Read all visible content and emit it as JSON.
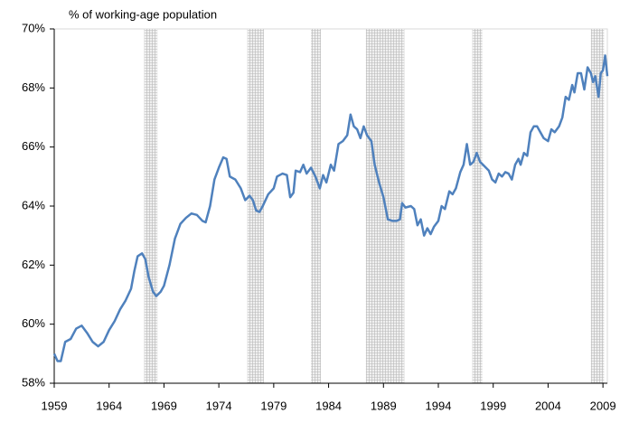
{
  "chart_data": {
    "type": "line",
    "title": "% of working-age population",
    "x": [
      1959.0,
      1959.3,
      1959.6,
      1960.0,
      1960.5,
      1961.0,
      1961.5,
      1962.0,
      1962.5,
      1963.0,
      1963.5,
      1964.0,
      1964.5,
      1965.0,
      1965.5,
      1966.0,
      1966.3,
      1966.6,
      1967.0,
      1967.3,
      1967.6,
      1968.0,
      1968.3,
      1968.7,
      1969.0,
      1969.5,
      1970.0,
      1970.5,
      1971.0,
      1971.5,
      1972.0,
      1972.5,
      1972.8,
      1973.2,
      1973.6,
      1974.0,
      1974.4,
      1974.7,
      1975.0,
      1975.5,
      1976.0,
      1976.4,
      1976.8,
      1977.1,
      1977.4,
      1977.7,
      1978.0,
      1978.5,
      1979.0,
      1979.3,
      1979.8,
      1980.2,
      1980.5,
      1980.8,
      1981.0,
      1981.4,
      1981.7,
      1982.0,
      1982.4,
      1982.8,
      1983.2,
      1983.5,
      1983.8,
      1984.2,
      1984.5,
      1984.9,
      1985.3,
      1985.7,
      1986.0,
      1986.3,
      1986.6,
      1986.9,
      1987.2,
      1987.5,
      1987.9,
      1988.2,
      1988.6,
      1989.0,
      1989.4,
      1989.8,
      1990.2,
      1990.5,
      1990.7,
      1991.0,
      1991.5,
      1991.8,
      1992.1,
      1992.4,
      1992.7,
      1993.0,
      1993.3,
      1993.6,
      1994.0,
      1994.3,
      1994.6,
      1995.0,
      1995.3,
      1995.6,
      1996.0,
      1996.3,
      1996.6,
      1996.9,
      1997.2,
      1997.5,
      1997.8,
      1998.2,
      1998.6,
      1998.9,
      1999.2,
      1999.5,
      1999.8,
      2000.1,
      2000.4,
      2000.7,
      2001.0,
      2001.3,
      2001.5,
      2001.8,
      2002.1,
      2002.4,
      2002.7,
      2003.0,
      2003.3,
      2003.6,
      2004.0,
      2004.3,
      2004.6,
      2005.0,
      2005.3,
      2005.6,
      2005.9,
      2006.2,
      2006.4,
      2006.7,
      2007.0,
      2007.3,
      2007.6,
      2007.9,
      2008.1,
      2008.3,
      2008.6,
      2008.8,
      2009.0,
      2009.2,
      2009.4
    ],
    "series": [
      {
        "color": "#4f81bd",
        "values": [
          59.0,
          58.75,
          58.75,
          59.4,
          59.5,
          59.85,
          59.95,
          59.7,
          59.4,
          59.25,
          59.4,
          59.8,
          60.1,
          60.5,
          60.8,
          61.2,
          61.8,
          62.3,
          62.4,
          62.2,
          61.6,
          61.1,
          60.95,
          61.1,
          61.3,
          62.0,
          62.9,
          63.4,
          63.6,
          63.75,
          63.7,
          63.5,
          63.45,
          64.0,
          64.9,
          65.3,
          65.65,
          65.6,
          65.0,
          64.9,
          64.6,
          64.2,
          64.35,
          64.2,
          63.85,
          63.8,
          64.0,
          64.4,
          64.6,
          65.0,
          65.1,
          65.05,
          64.3,
          64.45,
          65.2,
          65.15,
          65.4,
          65.1,
          65.3,
          65.0,
          64.6,
          65.05,
          64.8,
          65.4,
          65.2,
          66.1,
          66.2,
          66.4,
          67.1,
          66.7,
          66.6,
          66.3,
          66.7,
          66.4,
          66.2,
          65.4,
          64.8,
          64.3,
          63.55,
          63.5,
          63.5,
          63.55,
          64.1,
          63.95,
          64.0,
          63.9,
          63.35,
          63.55,
          63.0,
          63.25,
          63.05,
          63.3,
          63.5,
          64.0,
          63.9,
          64.5,
          64.4,
          64.6,
          65.15,
          65.4,
          66.1,
          65.4,
          65.5,
          65.8,
          65.5,
          65.35,
          65.2,
          64.9,
          64.8,
          65.1,
          65.0,
          65.15,
          65.1,
          64.9,
          65.4,
          65.6,
          65.4,
          65.8,
          65.7,
          66.5,
          66.7,
          66.7,
          66.5,
          66.3,
          66.2,
          66.6,
          66.5,
          66.7,
          67.0,
          67.7,
          67.6,
          68.1,
          67.85,
          68.5,
          68.5,
          67.95,
          68.7,
          68.5,
          68.2,
          68.4,
          67.7,
          68.5,
          68.6,
          69.1,
          68.4
        ]
      }
    ],
    "bands": [
      [
        1967.2,
        1968.4
      ],
      [
        1976.6,
        1978.1
      ],
      [
        1982.4,
        1983.3
      ],
      [
        1987.4,
        1990.9
      ],
      [
        1997.1,
        1998.0
      ],
      [
        2007.9,
        2009.1
      ]
    ],
    "xlim": [
      1959,
      2009.4
    ],
    "xticks": [
      1959,
      1964,
      1969,
      1974,
      1979,
      1984,
      1989,
      1994,
      1999,
      2004,
      2009
    ],
    "ylim": [
      58,
      70
    ],
    "yticks": [
      {
        "value": 58,
        "label": "58%"
      },
      {
        "value": 60,
        "label": "60%"
      },
      {
        "value": 62,
        "label": "62%"
      },
      {
        "value": 64,
        "label": "64%"
      },
      {
        "value": 66,
        "label": "66%"
      },
      {
        "value": 68,
        "label": "68%"
      },
      {
        "value": 70,
        "label": "70%"
      }
    ]
  }
}
